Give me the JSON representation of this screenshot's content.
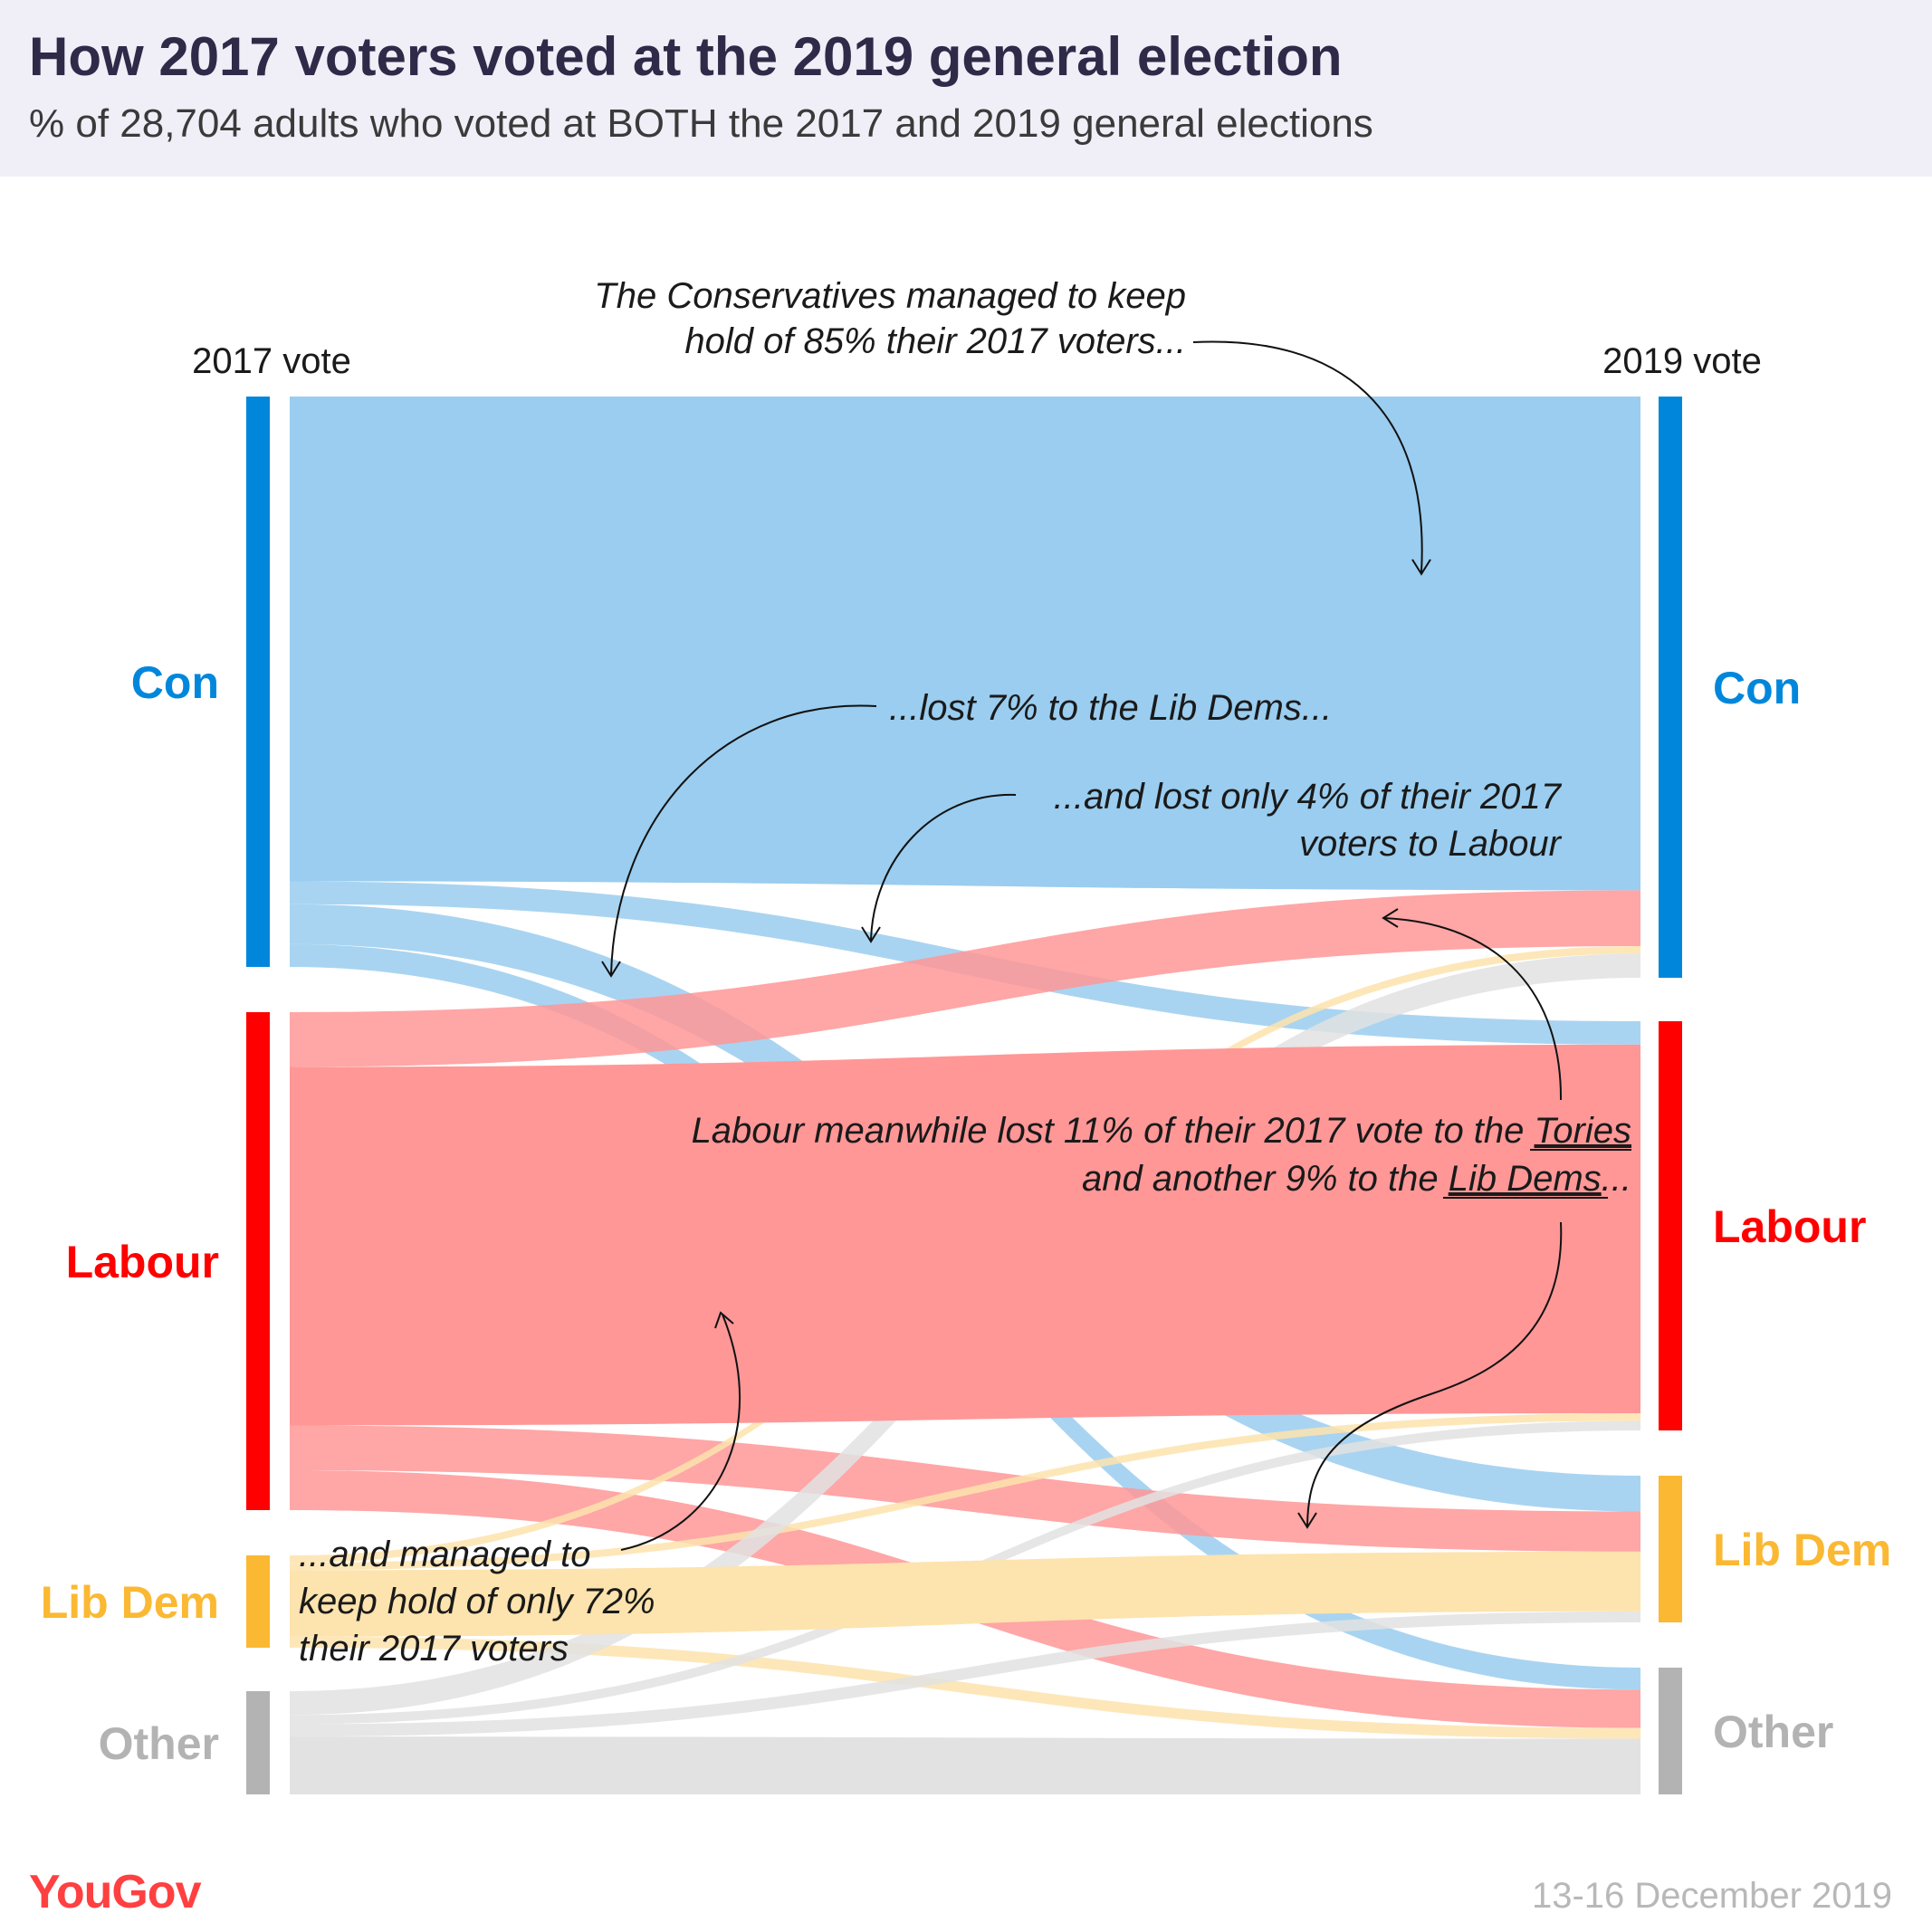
{
  "header": {
    "title": "How 2017 voters voted at the 2019 general election",
    "subtitle": "% of 28,704 adults who voted at BOTH the 2017 and 2019 general elections"
  },
  "columns": {
    "left": "2017 vote",
    "right": "2019 vote"
  },
  "colors": {
    "Con": "#0087dc",
    "Labour": "#ff0000",
    "Lib Dem": "#fbb832",
    "Other": "#b3b3b3",
    "Con_light": "#9acdef",
    "Labour_light": "#ff9797",
    "Lib Dem_light": "#fde3ad",
    "Other_light": "#e2e2e2",
    "header_bg": "#f0eef7"
  },
  "chart_data": {
    "type": "sankey",
    "unit": "% of 2017 voters (of each party)",
    "title": "How 2017 voters voted at the 2019 general election",
    "sources": [
      {
        "name": "Con",
        "label": "Con"
      },
      {
        "name": "Labour",
        "label": "Labour"
      },
      {
        "name": "Lib Dem",
        "label": "Lib Dem"
      },
      {
        "name": "Other",
        "label": "Other"
      }
    ],
    "targets": [
      {
        "name": "Con",
        "label": "Con"
      },
      {
        "name": "Labour",
        "label": "Labour"
      },
      {
        "name": "Lib Dem",
        "label": "Lib Dem"
      },
      {
        "name": "Other",
        "label": "Other"
      }
    ],
    "flows": [
      {
        "from": "Con",
        "to": "Con",
        "value": 85
      },
      {
        "from": "Con",
        "to": "Labour",
        "value": 4
      },
      {
        "from": "Con",
        "to": "Lib Dem",
        "value": 7
      },
      {
        "from": "Con",
        "to": "Other",
        "value": 4
      },
      {
        "from": "Labour",
        "to": "Con",
        "value": 11
      },
      {
        "from": "Labour",
        "to": "Labour",
        "value": 72
      },
      {
        "from": "Labour",
        "to": "Lib Dem",
        "value": 9
      },
      {
        "from": "Labour",
        "to": "Other",
        "value": 8
      },
      {
        "from": "Lib Dem",
        "to": "Con",
        "value": 8
      },
      {
        "from": "Lib Dem",
        "to": "Labour",
        "value": 8
      },
      {
        "from": "Lib Dem",
        "to": "Lib Dem",
        "value": 72
      },
      {
        "from": "Lib Dem",
        "to": "Other",
        "value": 12
      },
      {
        "from": "Other",
        "to": "Con",
        "value": 23
      },
      {
        "from": "Other",
        "to": "Labour",
        "value": 9
      },
      {
        "from": "Other",
        "to": "Lib Dem",
        "value": 12
      },
      {
        "from": "Other",
        "to": "Other",
        "value": 56
      }
    ]
  },
  "annotations": {
    "a1": [
      "The Conservatives managed to keep",
      "hold of 85% their 2017 voters..."
    ],
    "a2": [
      "...lost 7% to the Lib Dems..."
    ],
    "a3": [
      "...and lost only 4% of their 2017",
      "voters to Labour"
    ],
    "a4_l1_pre": "Labour meanwhile lost 11% of their 2017 vote to the ",
    "a4_l1_ul": "Tories",
    "a4_l2_pre": "and another 9% to the ",
    "a4_l2_ul": "Lib Dems",
    "a4_l2_post": "...",
    "a5": [
      "...and managed to",
      "keep hold of only 72%",
      "their 2017 voters"
    ]
  },
  "footer": {
    "logo": "YouGov",
    "date": "13-16 December 2019"
  }
}
